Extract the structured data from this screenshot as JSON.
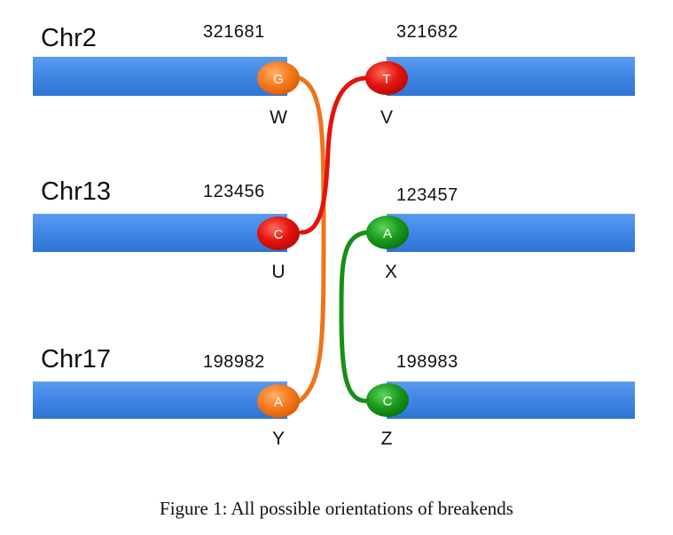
{
  "rows": [
    {
      "chrom": "Chr2",
      "left": {
        "pos": "321681",
        "base": "G",
        "label": "W",
        "color": "orange"
      },
      "right": {
        "pos": "321682",
        "base": "T",
        "label": "V",
        "color": "red"
      }
    },
    {
      "chrom": "Chr13",
      "left": {
        "pos": "123456",
        "base": "C",
        "label": "U",
        "color": "red"
      },
      "right": {
        "pos": "123457",
        "base": "A",
        "label": "X",
        "color": "green"
      }
    },
    {
      "chrom": "Chr17",
      "left": {
        "pos": "198982",
        "base": "A",
        "label": "Y",
        "color": "orange"
      },
      "right": {
        "pos": "198983",
        "base": "C",
        "label": "Z",
        "color": "green"
      }
    }
  ],
  "connections": [
    {
      "from": "W",
      "to": "Y",
      "color": "orange"
    },
    {
      "from": "V",
      "to": "U",
      "color": "red"
    },
    {
      "from": "X",
      "to": "Z",
      "color": "green"
    }
  ],
  "colors": {
    "bar": "#3f86e4",
    "orange": "#f0731a",
    "red": "#e3140d",
    "green": "#159018"
  },
  "caption": "Figure 1: All possible orientations of breakends"
}
